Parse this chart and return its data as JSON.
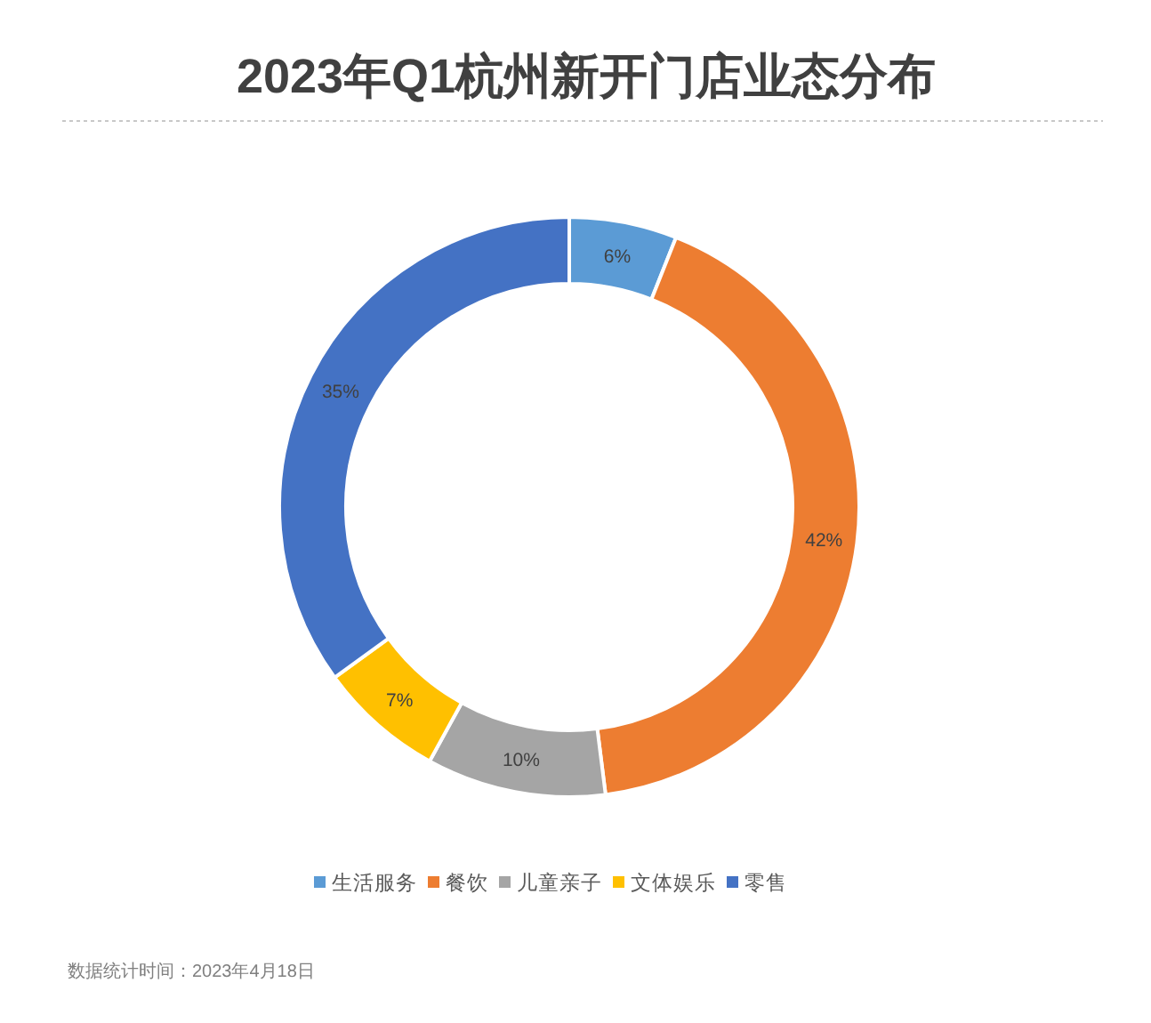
{
  "chart_data": {
    "type": "donut",
    "title": "2023年Q1杭州新开门店业态分布",
    "categories": [
      "生活服务",
      "餐饮",
      "儿童亲子",
      "文体娱乐",
      "零售"
    ],
    "values": [
      6,
      42,
      10,
      7,
      35
    ],
    "colors": [
      "#5b9bd5",
      "#ed7d31",
      "#a5a5a5",
      "#ffc000",
      "#4472c4"
    ],
    "value_labels": [
      "6%",
      "42%",
      "10%",
      "7%",
      "35%"
    ],
    "legend": "bottom",
    "annotations": [
      "数据统计时间：2023年4月18日"
    ]
  }
}
